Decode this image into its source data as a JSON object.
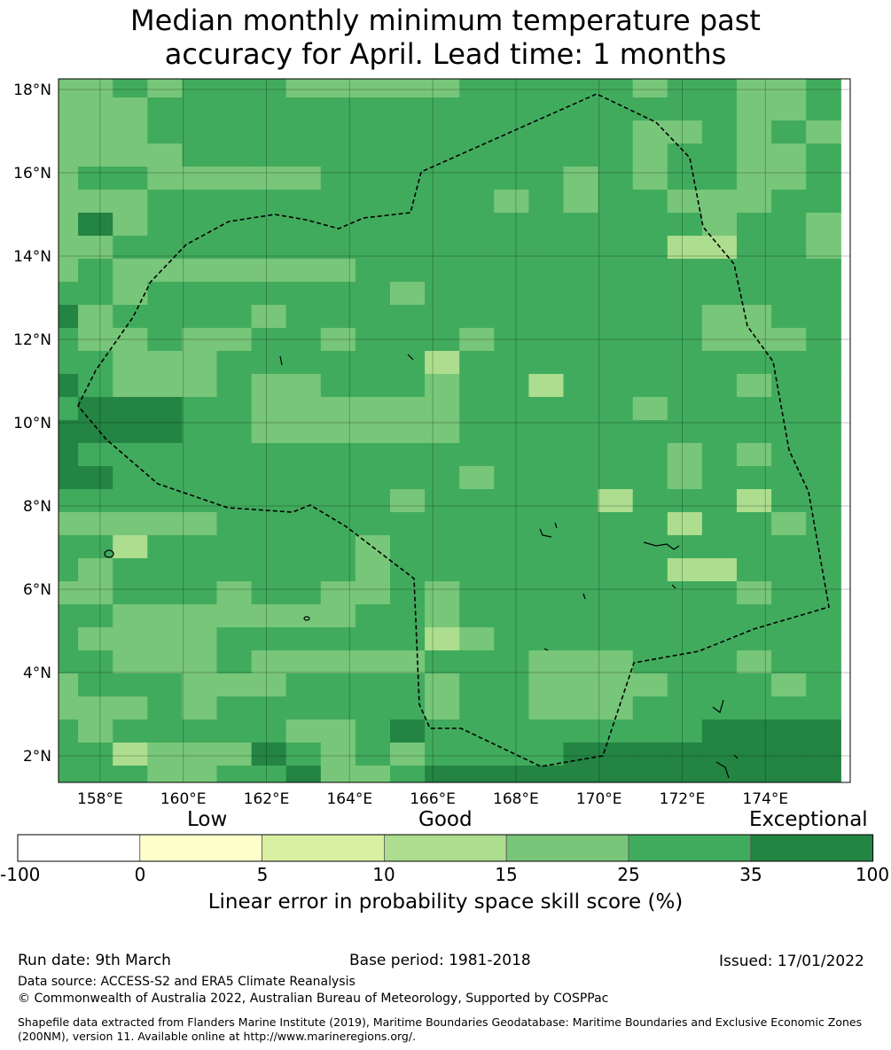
{
  "title": {
    "line1": "Median monthly minimum temperature past",
    "line2": "accuracy for April. Lead time: 1 months"
  },
  "map": {
    "lat_labels": [
      "18°N",
      "16°N",
      "14°N",
      "12°N",
      "10°N",
      "8°N",
      "6°N",
      "4°N",
      "2°N"
    ],
    "lon_labels": [
      "158°E",
      "160°E",
      "162°E",
      "164°E",
      "166°E",
      "168°E",
      "170°E",
      "172°E",
      "174°E"
    ],
    "lon_range": [
      157,
      176
    ],
    "lat_range": [
      1.4,
      18.3
    ],
    "grid": true
  },
  "colorbar": {
    "category_labels": [
      "Low",
      "Good",
      "Exceptional"
    ],
    "ticks": [
      "-100",
      "0",
      "5",
      "10",
      "15",
      "25",
      "35",
      "100"
    ],
    "colors": [
      "#ffffff",
      "#ffffcc",
      "#d9f0a3",
      "#addd8e",
      "#78c679",
      "#41ab5d",
      "#238443"
    ],
    "axis_label": "Linear error in probability space skill score (%)"
  },
  "footer": {
    "run_date": "Run date: 9th March",
    "base_period": "Base period: 1981-2018",
    "issued": "Issued: 17/01/2022",
    "data_source": "Data source: ACCESS-S2 and ERA5 Climate Reanalysis",
    "copyright": "© Commonwealth of Australia 2022, Australian Bureau of Meteorology, Supported by COSPPac",
    "shapefile": "Shapefile data extracted from Flanders Marine Institute (2019), Maritime Boundaries Geodatabase: Maritime Boundaries and Exclusive Economic Zones (200NM), version 11. Available online at http://www.marineregions.org/."
  }
}
